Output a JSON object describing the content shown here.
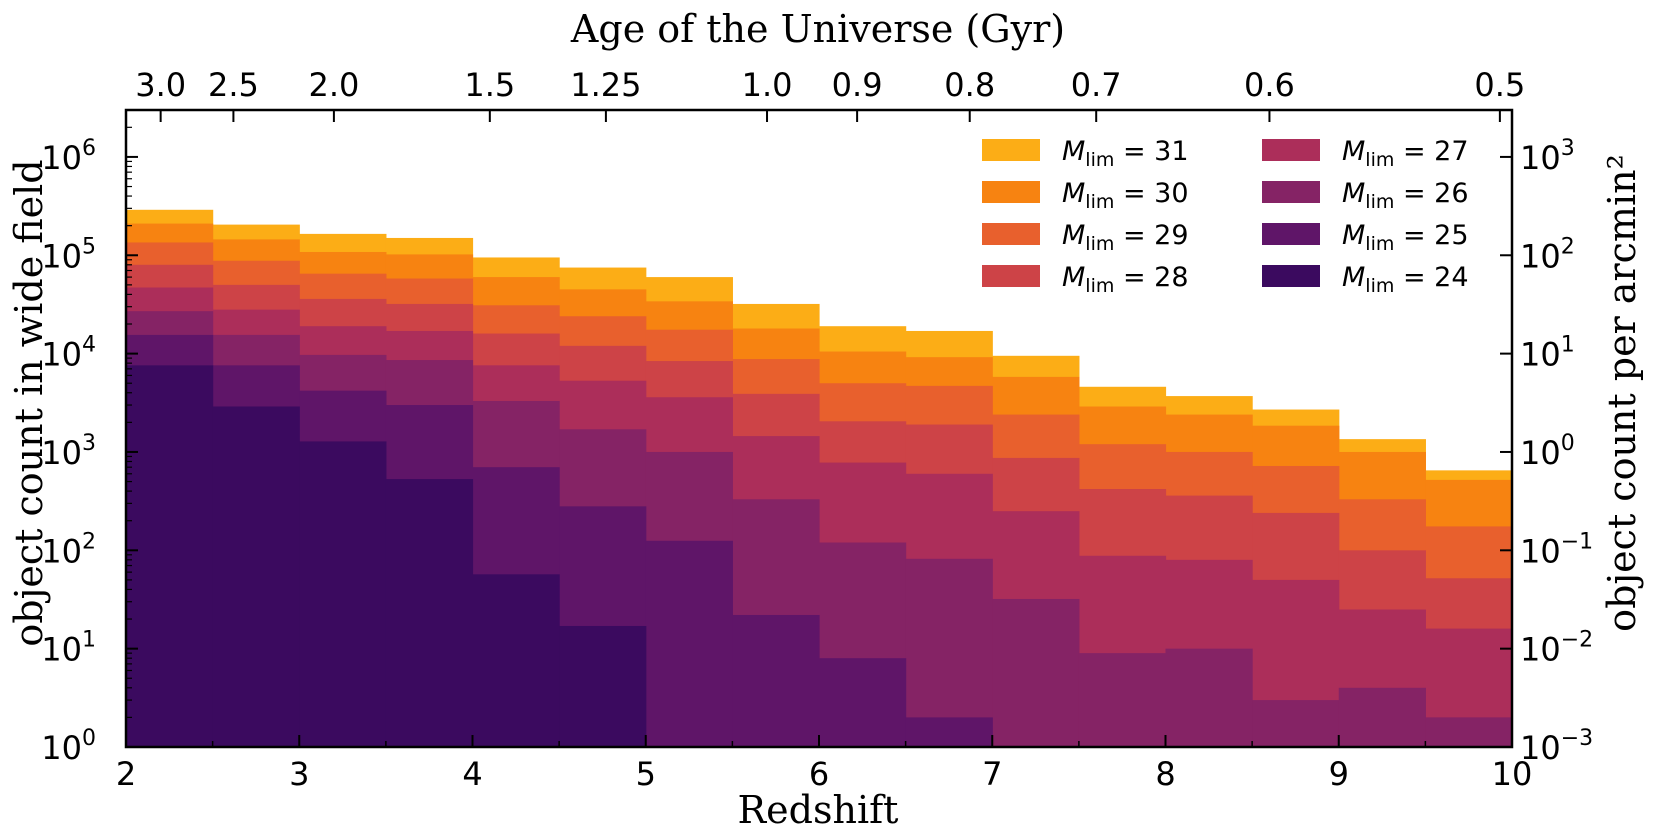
{
  "chart_data": {
    "type": "bar",
    "style": "stacked-step-histogram",
    "xlabel": "Redshift",
    "ylabel": "object count in wide field",
    "ylabel_right": "object count per arcmin²",
    "xlabel_top": "Age of the Universe (Gyr)",
    "x_range": [
      2,
      10
    ],
    "y_range": [
      1,
      3000000
    ],
    "y_scale": "log",
    "x_ticks": [
      "2",
      "3",
      "4",
      "5",
      "6",
      "7",
      "8",
      "9",
      "10"
    ],
    "y_ticks": [
      {
        "base": "10",
        "exp": "0",
        "value": 1
      },
      {
        "base": "10",
        "exp": "1",
        "value": 10
      },
      {
        "base": "10",
        "exp": "2",
        "value": 100
      },
      {
        "base": "10",
        "exp": "3",
        "value": 1000
      },
      {
        "base": "10",
        "exp": "4",
        "value": 10000
      },
      {
        "base": "10",
        "exp": "5",
        "value": 100000
      },
      {
        "base": "10",
        "exp": "6",
        "value": 1000000
      }
    ],
    "right_ticks": [
      {
        "base": "10",
        "exp": "−3"
      },
      {
        "base": "10",
        "exp": "−2"
      },
      {
        "base": "10",
        "exp": "−1"
      },
      {
        "base": "10",
        "exp": "0"
      },
      {
        "base": "10",
        "exp": "1"
      },
      {
        "base": "10",
        "exp": "2"
      },
      {
        "base": "10",
        "exp": "3"
      }
    ],
    "top_ticks": [
      {
        "label": "3.0",
        "z": 2.2
      },
      {
        "label": "2.5",
        "z": 2.62
      },
      {
        "label": "2.0",
        "z": 3.2
      },
      {
        "label": "1.5",
        "z": 4.1
      },
      {
        "label": "1.25",
        "z": 4.77
      },
      {
        "label": "1.0",
        "z": 5.7
      },
      {
        "label": "0.9",
        "z": 6.22
      },
      {
        "label": "0.8",
        "z": 6.87
      },
      {
        "label": "0.7",
        "z": 7.6
      },
      {
        "label": "0.6",
        "z": 8.6
      },
      {
        "label": "0.5",
        "z": 9.93
      }
    ],
    "bin_edges": [
      2,
      2.5,
      3,
      3.5,
      4,
      4.5,
      5,
      5.5,
      6,
      6.5,
      7,
      7.5,
      8,
      8.5,
      9,
      9.5,
      10
    ],
    "grid": false,
    "legend_position": "top-right",
    "series": [
      {
        "name": "31",
        "color": "#fcad16",
        "values": [
          290000,
          205000,
          165000,
          150000,
          95000,
          75000,
          60000,
          32000,
          19000,
          17000,
          9500,
          4600,
          3700,
          2700,
          1350,
          650
        ]
      },
      {
        "name": "30",
        "color": "#f78311",
        "values": [
          210000,
          145000,
          108000,
          102000,
          60000,
          45000,
          34000,
          18000,
          10500,
          9200,
          5800,
          2900,
          2400,
          1850,
          1000,
          520
        ]
      },
      {
        "name": "29",
        "color": "#e8602d",
        "values": [
          135000,
          88000,
          65000,
          58000,
          31000,
          24000,
          17500,
          8800,
          5000,
          4700,
          2400,
          1200,
          1000,
          720,
          330,
          175
        ]
      },
      {
        "name": "28",
        "color": "#cd4347",
        "values": [
          80000,
          50000,
          36000,
          32000,
          16000,
          12000,
          8400,
          3900,
          2050,
          1900,
          870,
          420,
          360,
          240,
          100,
          52
        ]
      },
      {
        "name": "27",
        "color": "#ac2e5a",
        "values": [
          47000,
          28000,
          19000,
          17000,
          7600,
          5300,
          3600,
          1450,
          780,
          600,
          250,
          88,
          80,
          50,
          25,
          16
        ]
      },
      {
        "name": "26",
        "color": "#852365",
        "values": [
          27000,
          15500,
          9700,
          8600,
          3300,
          1700,
          1000,
          330,
          120,
          82,
          32,
          9,
          10,
          3,
          4,
          2
        ]
      },
      {
        "name": "25",
        "color": "#5f1568",
        "values": [
          15500,
          7600,
          4200,
          3000,
          700,
          280,
          125,
          22,
          8,
          2,
          1,
          1,
          1,
          1,
          1,
          1
        ]
      },
      {
        "name": "24",
        "color": "#3b0a5f",
        "values": [
          7600,
          2900,
          1280,
          530,
          57,
          17,
          1,
          1,
          1,
          1,
          1,
          1,
          1,
          1,
          1,
          1
        ]
      }
    ],
    "legend_label_prefix": "M",
    "legend_label_sub": "lim",
    "legend_label_eq": " = "
  }
}
